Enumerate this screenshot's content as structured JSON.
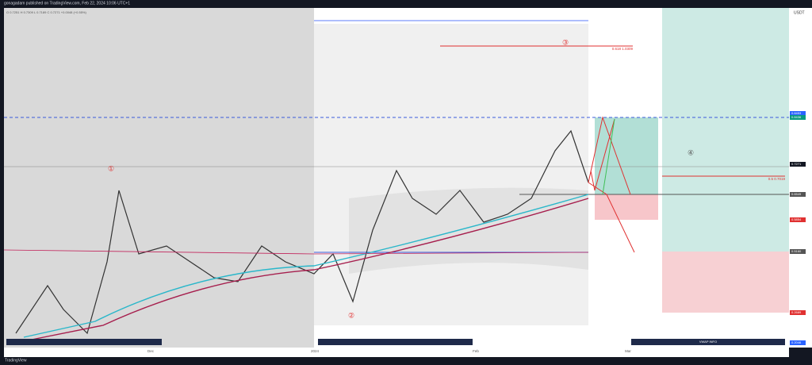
{
  "header": {
    "publisher": "gonagadam published on TradingView.com, Feb 22, 2024 10:06 UTC+1",
    "ohlc": "O 0.7251  H 0.7309  L 0.7189  C 0.7271  +0.0048 (+0.55%)"
  },
  "price_axis": {
    "currency": "USDT",
    "boxes": [
      "0.8453",
      "0.8436",
      "0.7271",
      "0.6549",
      "0.5854",
      "0.5160",
      "0.2689",
      "0.2046"
    ]
  },
  "annotations": {
    "wave1": "①",
    "wave2": "②",
    "wave3": "③",
    "wave4": "④",
    "fib618": "0.618 1.0309",
    "fib5": "0.5 0.7019"
  },
  "panels": {
    "vwap": "VWAP INFO"
  },
  "time_axis": [
    "Dec",
    "2024",
    "Feb",
    "Mar"
  ],
  "footer": {
    "brand": "TradingView"
  }
}
